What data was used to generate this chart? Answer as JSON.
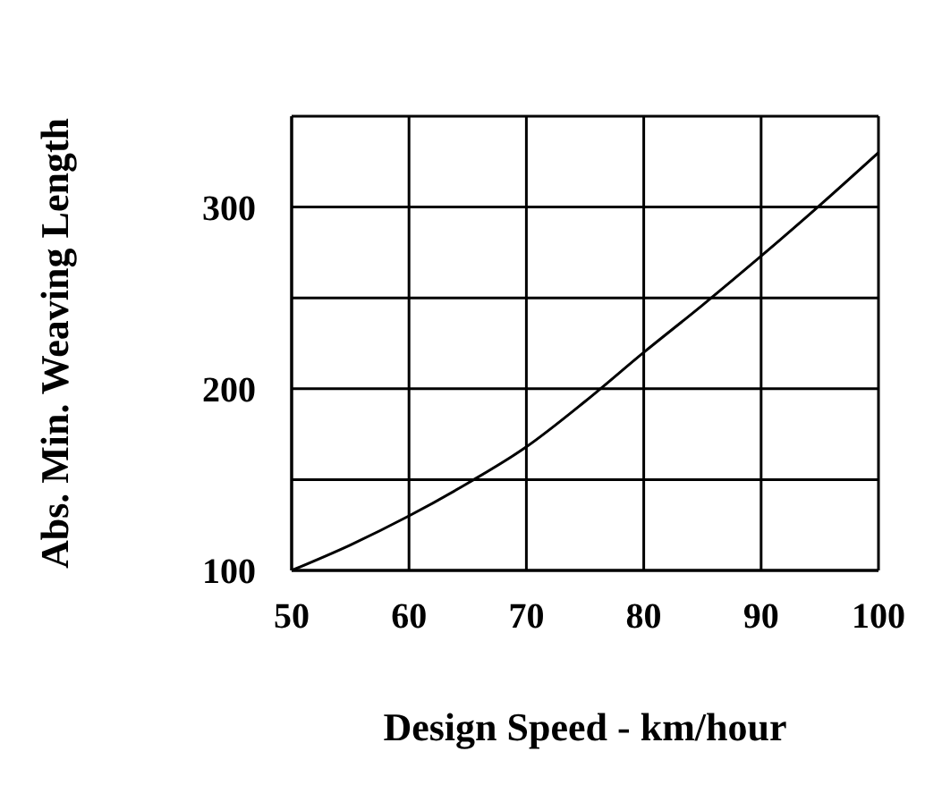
{
  "chart_data": {
    "type": "line",
    "xlabel": "Design Speed - km/hour",
    "ylabel": "Abs. Min. Weaving Length",
    "x": [
      50,
      55,
      60,
      65,
      70,
      75,
      80,
      85,
      90,
      95,
      100
    ],
    "series": [
      {
        "color": "#000000",
        "values": [
          100,
          114,
          130,
          148,
          168,
          193,
          220,
          246,
          273,
          301,
          330
        ]
      }
    ],
    "xlim": [
      50,
      100
    ],
    "xticks": [
      50,
      60,
      70,
      80,
      90,
      100
    ],
    "ylim": [
      100,
      350
    ],
    "yticks": [
      100,
      {
        "value": 150,
        "label": null
      },
      200,
      {
        "value": 250,
        "label": null
      },
      300,
      {
        "value": 350,
        "label": null
      }
    ],
    "grid": true,
    "marker": "none",
    "line_style": "solid",
    "legend": false
  }
}
